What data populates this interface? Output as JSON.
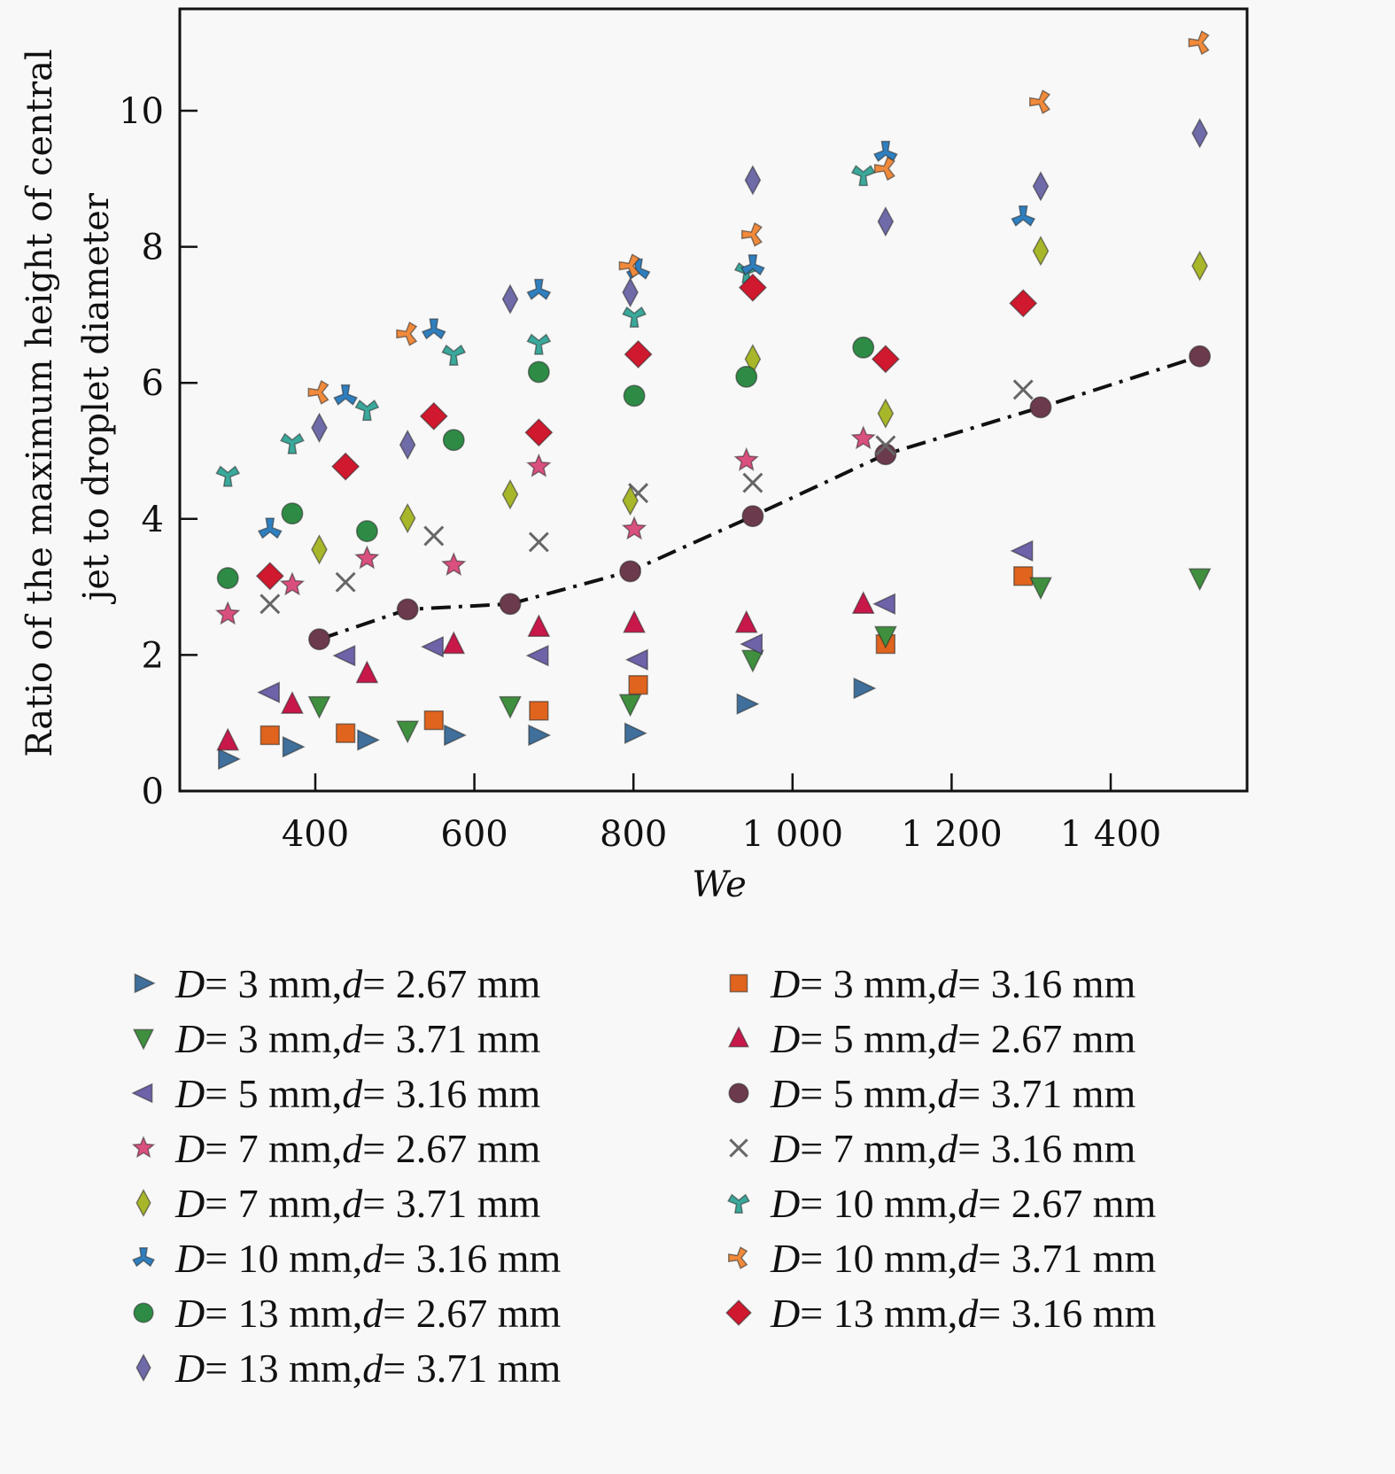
{
  "chart_data": {
    "type": "scatter",
    "title": "",
    "xlabel": "We",
    "ylabel_line1": "Ratio of the maximum height of central",
    "ylabel_line2": "jet to droplet diameter",
    "xlim": [
      230,
      1572
    ],
    "ylim": [
      0,
      11.5
    ],
    "xticks": [
      400,
      600,
      800,
      1000,
      1200,
      1400
    ],
    "xtick_labels": [
      "400",
      "600",
      "800",
      "1 000",
      "1 200",
      "1 400"
    ],
    "yticks": [
      0,
      2,
      4,
      6,
      8,
      10
    ],
    "ytick_labels": [
      "0",
      "2",
      "4",
      "6",
      "8",
      "10"
    ],
    "grid": false,
    "legend_placement": "bottom",
    "series": [
      {
        "name": "D = 3 mm, d = 2.67 mm",
        "D": "3",
        "d": "2.67",
        "marker": "triangle-right",
        "color": "#3f6f9a",
        "points": [
          [
            290,
            0.47
          ],
          [
            371,
            0.65
          ],
          [
            465,
            0.75
          ],
          [
            574,
            0.82
          ],
          [
            680,
            0.82
          ],
          [
            801,
            0.85
          ],
          [
            942,
            1.28
          ],
          [
            1089,
            1.51
          ]
        ]
      },
      {
        "name": "D = 3 mm, d = 3.16 mm",
        "D": "3",
        "d": "3.16",
        "marker": "square",
        "color": "#e0641e",
        "points": [
          [
            343,
            0.82
          ],
          [
            438,
            0.85
          ],
          [
            549,
            1.04
          ],
          [
            681,
            1.18
          ],
          [
            806,
            1.56
          ],
          [
            1117,
            2.16
          ],
          [
            1290,
            3.16
          ]
        ]
      },
      {
        "name": "D = 3 mm, d = 3.71 mm",
        "D": "3",
        "d": "3.71",
        "marker": "triangle-down",
        "color": "#3f8f3f",
        "points": [
          [
            405,
            1.25
          ],
          [
            516,
            0.89
          ],
          [
            645,
            1.25
          ],
          [
            796,
            1.28
          ],
          [
            950,
            1.93
          ],
          [
            1117,
            2.28
          ],
          [
            1312,
            3.0
          ],
          [
            1512,
            3.13
          ]
        ]
      },
      {
        "name": "D = 5 mm, d = 2.67 mm",
        "D": "5",
        "d": "2.67",
        "marker": "triangle-up",
        "color": "#c8184a",
        "points": [
          [
            290,
            0.74
          ],
          [
            371,
            1.28
          ],
          [
            465,
            1.73
          ],
          [
            574,
            2.16
          ],
          [
            681,
            2.41
          ],
          [
            801,
            2.47
          ],
          [
            942,
            2.47
          ],
          [
            1089,
            2.75
          ]
        ]
      },
      {
        "name": "D = 5 mm, d = 3.16 mm",
        "D": "5",
        "d": "3.16",
        "marker": "triangle-left",
        "color": "#6e62a8",
        "points": [
          [
            343,
            1.45
          ],
          [
            438,
            1.99
          ],
          [
            549,
            2.12
          ],
          [
            681,
            1.99
          ],
          [
            806,
            1.93
          ],
          [
            950,
            2.16
          ],
          [
            1117,
            2.75
          ],
          [
            1290,
            3.53
          ]
        ]
      },
      {
        "name": "D = 5 mm, d = 3.71 mm",
        "D": "5",
        "d": "3.71",
        "marker": "circle",
        "color": "#6b3a4c",
        "line": "dashdot",
        "points": [
          [
            405,
            2.23
          ],
          [
            516,
            2.67
          ],
          [
            645,
            2.75
          ],
          [
            796,
            3.23
          ],
          [
            950,
            4.04
          ],
          [
            1117,
            4.95
          ],
          [
            1312,
            5.64
          ],
          [
            1512,
            6.39
          ]
        ]
      },
      {
        "name": "D = 7 mm, d = 2.67 mm",
        "D": "7",
        "d": "2.67",
        "marker": "star",
        "color": "#d9507e",
        "points": [
          [
            290,
            2.6
          ],
          [
            371,
            3.03
          ],
          [
            465,
            3.42
          ],
          [
            574,
            3.32
          ],
          [
            681,
            4.77
          ],
          [
            801,
            3.85
          ],
          [
            942,
            4.86
          ],
          [
            1089,
            5.18
          ]
        ]
      },
      {
        "name": "D = 7 mm, d = 3.16 mm",
        "D": "7",
        "d": "3.16",
        "marker": "x",
        "color": "#666666",
        "points": [
          [
            343,
            2.75
          ],
          [
            438,
            3.07
          ],
          [
            549,
            3.75
          ],
          [
            681,
            3.66
          ],
          [
            806,
            4.38
          ],
          [
            950,
            4.53
          ],
          [
            1117,
            5.08
          ],
          [
            1290,
            5.9
          ]
        ]
      },
      {
        "name": "D = 7 mm, d = 3.71 mm",
        "D": "7",
        "d": "3.71",
        "marker": "thin-diamond",
        "color": "#a8b62a",
        "points": [
          [
            405,
            3.55
          ],
          [
            516,
            4.01
          ],
          [
            645,
            4.36
          ],
          [
            796,
            4.27
          ],
          [
            950,
            6.35
          ],
          [
            1117,
            5.55
          ],
          [
            1312,
            7.94
          ],
          [
            1512,
            7.72
          ]
        ]
      },
      {
        "name": "D = 10 mm, d = 2.67 mm",
        "D": "10",
        "d": "2.67",
        "marker": "tri-down",
        "color": "#3aa89a",
        "points": [
          [
            290,
            4.64
          ],
          [
            371,
            5.12
          ],
          [
            465,
            5.61
          ],
          [
            574,
            6.42
          ],
          [
            681,
            6.58
          ],
          [
            801,
            6.98
          ],
          [
            942,
            7.63
          ],
          [
            1089,
            9.06
          ]
        ]
      },
      {
        "name": "D = 10 mm, d = 3.16 mm",
        "D": "10",
        "d": "3.16",
        "marker": "tri-up",
        "color": "#2f7fbf",
        "points": [
          [
            343,
            3.85
          ],
          [
            438,
            5.81
          ],
          [
            549,
            6.78
          ],
          [
            681,
            7.36
          ],
          [
            806,
            7.66
          ],
          [
            950,
            7.72
          ],
          [
            1117,
            9.39
          ],
          [
            1290,
            8.44
          ]
        ]
      },
      {
        "name": "D = 10 mm, d = 3.71 mm",
        "D": "10",
        "d": "3.71",
        "marker": "tri-left",
        "color": "#f08a3c",
        "points": [
          [
            405,
            5.86
          ],
          [
            516,
            6.72
          ],
          [
            796,
            7.72
          ],
          [
            950,
            8.18
          ],
          [
            1117,
            9.15
          ],
          [
            1312,
            10.13
          ],
          [
            1512,
            11.0
          ]
        ]
      },
      {
        "name": "D = 13 mm, d = 2.67 mm",
        "D": "13",
        "d": "2.67",
        "marker": "circle",
        "color": "#2e8b45",
        "points": [
          [
            290,
            3.13
          ],
          [
            371,
            4.08
          ],
          [
            465,
            3.82
          ],
          [
            574,
            5.16
          ],
          [
            681,
            6.16
          ],
          [
            801,
            5.81
          ],
          [
            942,
            6.09
          ],
          [
            1089,
            6.52
          ]
        ]
      },
      {
        "name": "D = 13 mm, d = 3.16 mm",
        "D": "13",
        "d": "3.16",
        "marker": "diamond",
        "color": "#d0192e",
        "points": [
          [
            343,
            3.16
          ],
          [
            438,
            4.77
          ],
          [
            549,
            5.51
          ],
          [
            681,
            5.27
          ],
          [
            806,
            6.42
          ],
          [
            950,
            7.4
          ],
          [
            1117,
            6.35
          ],
          [
            1290,
            7.17
          ]
        ]
      },
      {
        "name": "D = 13 mm, d = 3.71 mm",
        "D": "13",
        "d": "3.71",
        "marker": "thin-diamond",
        "color": "#6f6aa8",
        "points": [
          [
            405,
            5.34
          ],
          [
            516,
            5.09
          ],
          [
            645,
            7.23
          ],
          [
            796,
            7.33
          ],
          [
            950,
            8.98
          ],
          [
            1117,
            8.37
          ],
          [
            1312,
            8.89
          ],
          [
            1512,
            9.67
          ]
        ]
      }
    ]
  },
  "legend": {
    "D_symbol": "D",
    "d_symbol": "d",
    "equals": " = ",
    "unit": " mm",
    "separator": ", "
  }
}
